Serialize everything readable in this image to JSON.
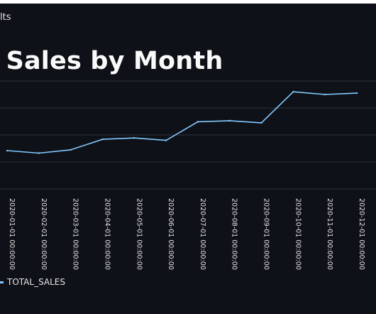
{
  "app": {
    "label": "lts"
  },
  "page": {
    "title": "l Sales by Month"
  },
  "colors": {
    "background": "#0e1117",
    "line": "#83c9ff",
    "grid": "#31333f"
  },
  "chart_data": {
    "type": "line",
    "title": "",
    "xlabel": "",
    "ylabel": "",
    "ylim": [
      0,
      4
    ],
    "x": [
      "2020-01-01 00:00:00",
      "2020-02-01 00:00:00",
      "2020-03-01 00:00:00",
      "2020-04-01 00:00:00",
      "2020-05-01 00:00:00",
      "2020-06-01 00:00:00",
      "2020-07-01 00:00:00",
      "2020-08-01 00:00:00",
      "2020-09-01 00:00:00",
      "2020-10-01 00:00:00",
      "2020-11-01 00:00:00",
      "2020-12-01 00:00:00"
    ],
    "series": [
      {
        "name": "TOTAL_SALES",
        "values": [
          1.42,
          1.33,
          1.45,
          1.84,
          1.89,
          1.8,
          2.49,
          2.53,
          2.45,
          3.6,
          3.5,
          3.55
        ]
      }
    ],
    "grid": true,
    "legend": "bottom-left"
  }
}
